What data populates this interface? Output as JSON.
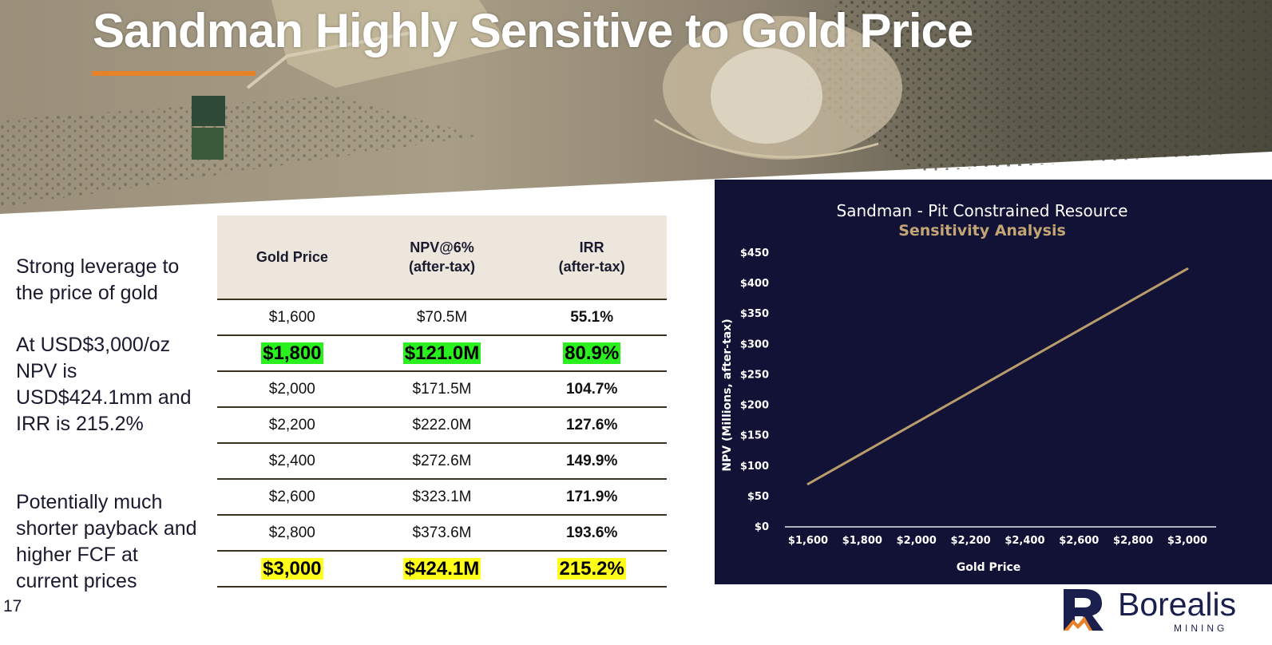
{
  "slide": {
    "title": "Sandman Highly Sensitive to Gold Price",
    "page_number": "17",
    "colors": {
      "accent": "#e8822a",
      "panel": "#111236",
      "line": "#b89c6c",
      "subtitle": "#c4a574"
    }
  },
  "bullets": [
    "Strong leverage to the price of gold",
    "At USD$3,000/oz NPV is USD$424.1mm and IRR is 215.2%",
    "Potentially much shorter payback and higher FCF at current prices"
  ],
  "table": {
    "headers": [
      "Gold Price",
      "NPV@6%\n(after-tax)",
      "IRR\n(after-tax)"
    ],
    "rows": [
      {
        "price": "$1,600",
        "npv": "$70.5M",
        "irr": "55.1%",
        "highlight": "none"
      },
      {
        "price": "$1,800",
        "npv": "$121.0M",
        "irr": "80.9%",
        "highlight": "green"
      },
      {
        "price": "$2,000",
        "npv": "$171.5M",
        "irr": "104.7%",
        "highlight": "none"
      },
      {
        "price": "$2,200",
        "npv": "$222.0M",
        "irr": "127.6%",
        "highlight": "none"
      },
      {
        "price": "$2,400",
        "npv": "$272.6M",
        "irr": "149.9%",
        "highlight": "none"
      },
      {
        "price": "$2,600",
        "npv": "$323.1M",
        "irr": "171.9%",
        "highlight": "none"
      },
      {
        "price": "$2,800",
        "npv": "$373.6M",
        "irr": "193.6%",
        "highlight": "none"
      },
      {
        "price": "$3,000",
        "npv": "$424.1M",
        "irr": "215.2%",
        "highlight": "yellow"
      }
    ]
  },
  "chart_data": {
    "type": "line",
    "title": "Sandman - Pit Constrained Resource",
    "subtitle": "Sensitivity Analysis",
    "xlabel": "Gold Price",
    "ylabel": "NPV (Millions, after-tax)",
    "categories": [
      "$1,600",
      "$1,800",
      "$2,000",
      "$2,200",
      "$2,400",
      "$2,600",
      "$2,800",
      "$3,000"
    ],
    "y_ticks": [
      "$0",
      "$50",
      "$100",
      "$150",
      "$200",
      "$250",
      "$300",
      "$350",
      "$400",
      "$450"
    ],
    "ylim": [
      0,
      450
    ],
    "grid": false,
    "series": [
      {
        "name": "NPV",
        "values": [
          70.5,
          121.0,
          171.5,
          222.0,
          272.6,
          323.1,
          373.6,
          424.1
        ]
      }
    ]
  },
  "logo": {
    "name": "Borealis",
    "sub": "MINING"
  }
}
